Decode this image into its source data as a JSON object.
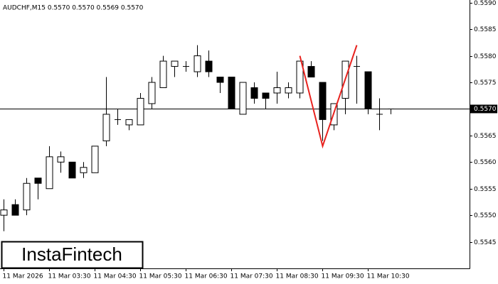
{
  "chart_data": {
    "type": "candlestick",
    "header": "AUDCHF,M15  0.5570 0.5570 0.5569 0.5570",
    "logo": "InstaFintech",
    "categories": [
      "11 Mar 2026",
      null,
      null,
      null,
      "11 Mar 03:30",
      null,
      null,
      null,
      "11 Mar 04:30",
      null,
      null,
      null,
      "11 Mar 05:30",
      null,
      null,
      null,
      "11 Mar 06:30",
      null,
      null,
      null,
      "11 Mar 07:30",
      null,
      null,
      null,
      "11 Mar 08:30",
      null,
      null,
      null,
      "11 Mar 09:30",
      null,
      null,
      null,
      "11 Mar 10:30",
      null,
      null
    ],
    "open": [
      0.555,
      0.5552,
      0.5551,
      0.5557,
      0.5555,
      0.556,
      0.556,
      0.5558,
      0.5558,
      0.5564,
      0.5568,
      0.5567,
      0.5567,
      0.5571,
      0.5574,
      0.5578,
      0.5578,
      0.5577,
      0.5579,
      0.5576,
      0.5576,
      0.5569,
      0.5574,
      0.5573,
      0.5573,
      0.5573,
      0.5573,
      0.5578,
      0.5575,
      0.5567,
      0.5572,
      0.5578,
      0.5577,
      0.5569,
      0.557
    ],
    "high": [
      0.5553,
      0.5553,
      0.5557,
      0.5557,
      0.5563,
      0.5562,
      0.556,
      0.556,
      0.5563,
      0.5576,
      0.557,
      0.5568,
      0.5573,
      0.5576,
      0.558,
      0.5579,
      0.5579,
      0.5582,
      0.5581,
      0.5576,
      0.5576,
      0.5575,
      0.5575,
      0.5573,
      0.5577,
      0.5575,
      0.5579,
      0.5579,
      0.5575,
      0.5571,
      0.5579,
      0.558,
      0.5577,
      0.5572,
      0.557
    ],
    "low": [
      0.5547,
      0.555,
      0.555,
      0.5553,
      0.5555,
      0.5558,
      0.5557,
      0.5557,
      0.5558,
      0.5563,
      0.5567,
      0.5566,
      0.5567,
      0.557,
      0.5574,
      0.5576,
      0.5577,
      0.5576,
      0.5576,
      0.5573,
      0.557,
      0.5569,
      0.5571,
      0.557,
      0.5571,
      0.5572,
      0.5572,
      0.5576,
      0.5564,
      0.5566,
      0.5569,
      0.5571,
      0.5569,
      0.5566,
      0.5569
    ],
    "close": [
      0.5551,
      0.555,
      0.5556,
      0.5556,
      0.5561,
      0.5561,
      0.5557,
      0.5559,
      0.5563,
      0.5569,
      0.5568,
      0.5568,
      0.5572,
      0.5575,
      0.5579,
      0.5579,
      0.5578,
      0.558,
      0.5577,
      0.5575,
      0.557,
      0.5575,
      0.5572,
      0.5572,
      0.5574,
      0.5574,
      0.5579,
      0.5576,
      0.5568,
      0.5571,
      0.5579,
      0.5578,
      0.557,
      0.5569,
      0.557
    ],
    "up_color": "#ffffff",
    "down_color": "#000000",
    "current_price": {
      "value": 0.557,
      "label": "0.5570"
    },
    "pattern": {
      "color": "#e8231f",
      "values": [
        0.558,
        0.5563,
        0.5582
      ]
    },
    "ylim": [
      0.554,
      0.55905
    ],
    "yticks": [
      0.5545,
      {
        "value": 0.555,
        "label": "0.5550"
      },
      0.5555,
      {
        "value": 0.556,
        "label": "0.5560"
      },
      0.5565,
      {
        "value": 0.557,
        "label": "0.5570"
      },
      0.5575,
      {
        "value": 0.558,
        "label": "0.5580"
      },
      0.5585,
      {
        "value": 0.559,
        "label": "0.5590"
      }
    ]
  }
}
